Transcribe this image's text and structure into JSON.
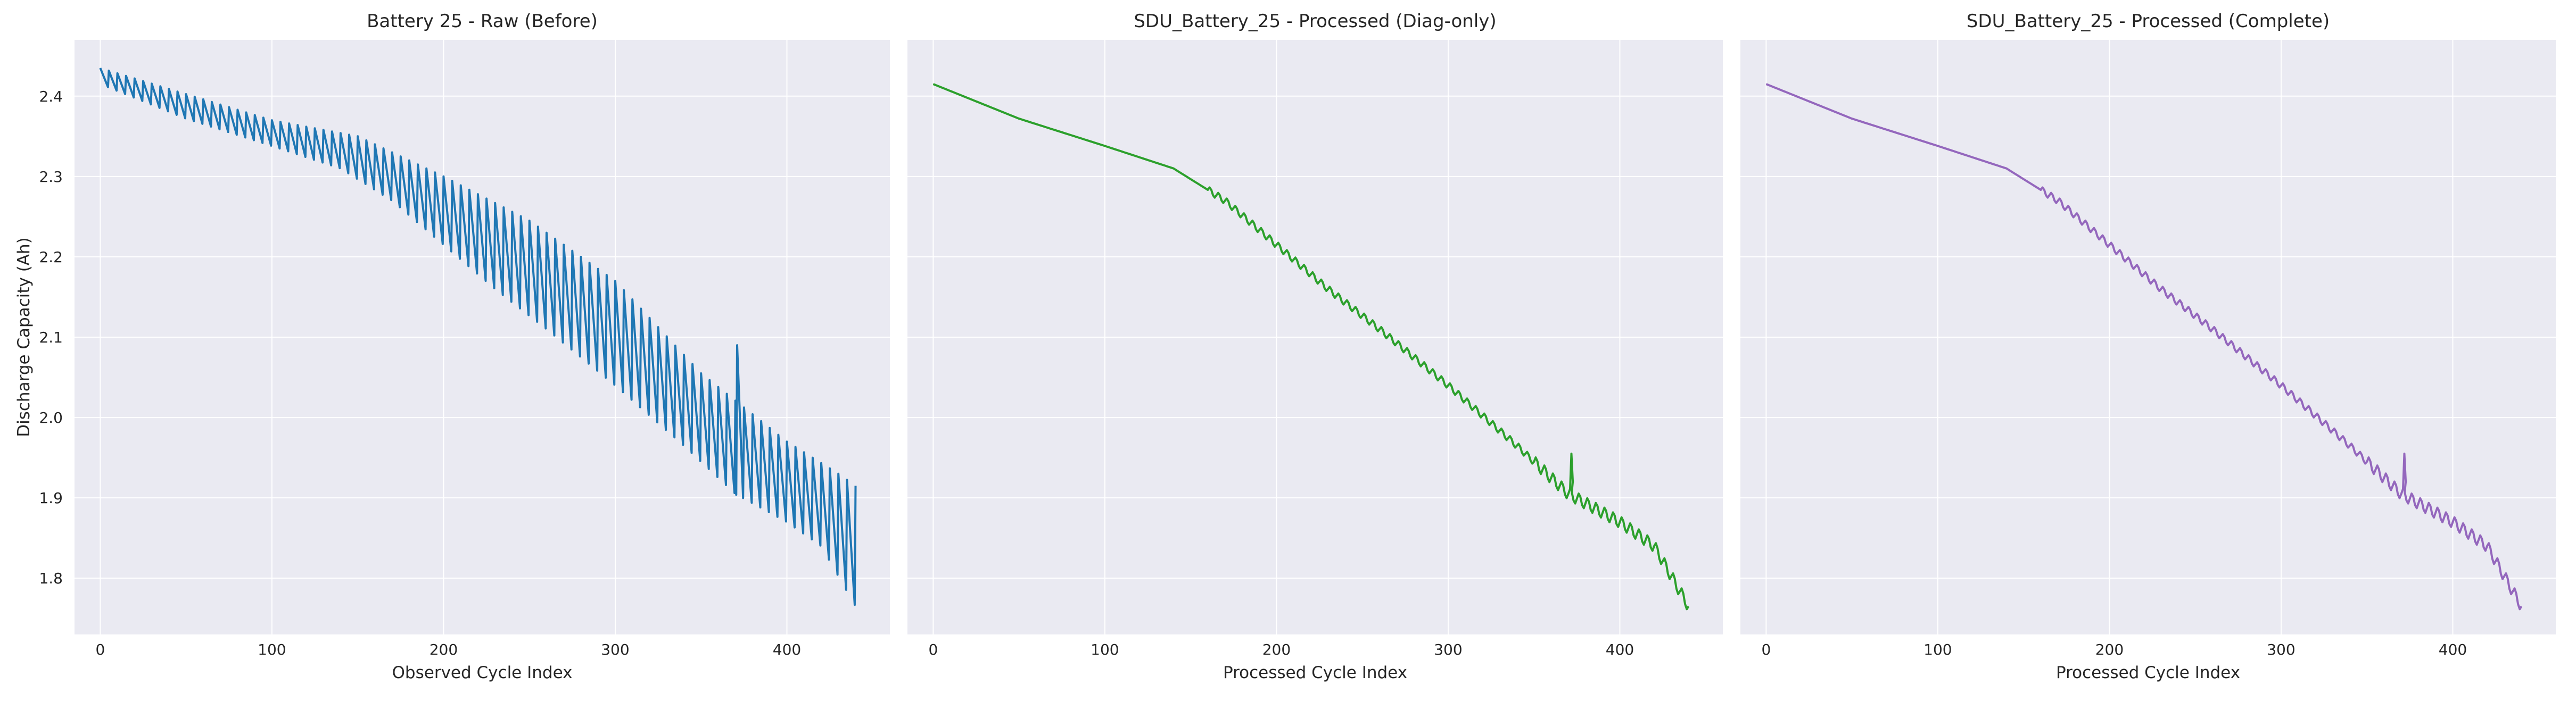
{
  "chart_data": [
    {
      "type": "line",
      "title": "Battery 25 - Raw (Before)",
      "xlabel": "Observed Cycle Index",
      "ylabel": "Discharge Capacity (Ah)",
      "xlim": [
        -15,
        460
      ],
      "ylim": [
        1.73,
        2.47
      ],
      "xticks": [
        0,
        100,
        200,
        300,
        400
      ],
      "yticks": [
        1.8,
        1.9,
        2.0,
        2.1,
        2.2,
        2.3,
        2.4
      ],
      "grid": true,
      "color": "#1f77b4",
      "pattern": "sawtooth",
      "trend": [
        [
          0,
          2.415
        ],
        [
          50,
          2.372
        ],
        [
          100,
          2.338
        ],
        [
          140,
          2.31
        ],
        [
          170,
          2.27
        ],
        [
          200,
          2.215
        ],
        [
          230,
          2.16
        ],
        [
          260,
          2.11
        ],
        [
          300,
          2.04
        ],
        [
          340,
          1.965
        ],
        [
          370,
          1.905
        ],
        [
          400,
          1.87
        ],
        [
          420,
          1.84
        ],
        [
          440,
          1.765
        ]
      ],
      "peaks": [
        [
          0,
          2.435
        ],
        [
          100,
          2.37
        ],
        [
          150,
          2.35
        ],
        [
          200,
          2.3
        ],
        [
          250,
          2.245
        ],
        [
          300,
          2.17
        ],
        [
          350,
          2.055
        ],
        [
          400,
          1.97
        ],
        [
          430,
          1.93
        ],
        [
          440,
          1.915
        ]
      ],
      "spike": [
        371,
        2.09
      ],
      "end_point": [
        440,
        1.915
      ]
    },
    {
      "type": "line",
      "title": "SDU_Battery_25 - Processed (Diag-only)",
      "xlabel": "Processed Cycle Index",
      "ylabel": "",
      "xlim": [
        -15,
        460
      ],
      "ylim": [
        1.73,
        2.47
      ],
      "xticks": [
        0,
        100,
        200,
        300,
        400
      ],
      "yticks": [
        1.8,
        1.9,
        2.0,
        2.1,
        2.2,
        2.3,
        2.4
      ],
      "grid": true,
      "color": "#2ca02c",
      "pattern": "smooth",
      "trend": [
        [
          0,
          2.415
        ],
        [
          50,
          2.372
        ],
        [
          100,
          2.338
        ],
        [
          140,
          2.31
        ],
        [
          170,
          2.27
        ],
        [
          200,
          2.215
        ],
        [
          230,
          2.16
        ],
        [
          260,
          2.11
        ],
        [
          300,
          2.04
        ],
        [
          340,
          1.965
        ],
        [
          370,
          1.905
        ],
        [
          400,
          1.87
        ],
        [
          420,
          1.84
        ],
        [
          440,
          1.765
        ]
      ],
      "spike": [
        372,
        1.955
      ]
    },
    {
      "type": "line",
      "title": "SDU_Battery_25 - Processed (Complete)",
      "xlabel": "Processed Cycle Index",
      "ylabel": "",
      "xlim": [
        -15,
        460
      ],
      "ylim": [
        1.73,
        2.47
      ],
      "xticks": [
        0,
        100,
        200,
        300,
        400
      ],
      "yticks": [
        1.8,
        1.9,
        2.0,
        2.1,
        2.2,
        2.3,
        2.4
      ],
      "grid": true,
      "color": "#9467bd",
      "pattern": "smooth",
      "trend": [
        [
          0,
          2.415
        ],
        [
          50,
          2.372
        ],
        [
          100,
          2.338
        ],
        [
          140,
          2.31
        ],
        [
          170,
          2.27
        ],
        [
          200,
          2.215
        ],
        [
          230,
          2.16
        ],
        [
          260,
          2.11
        ],
        [
          300,
          2.04
        ],
        [
          340,
          1.965
        ],
        [
          370,
          1.905
        ],
        [
          400,
          1.87
        ],
        [
          420,
          1.84
        ],
        [
          440,
          1.765
        ]
      ],
      "spike": [
        372,
        1.955
      ]
    }
  ]
}
